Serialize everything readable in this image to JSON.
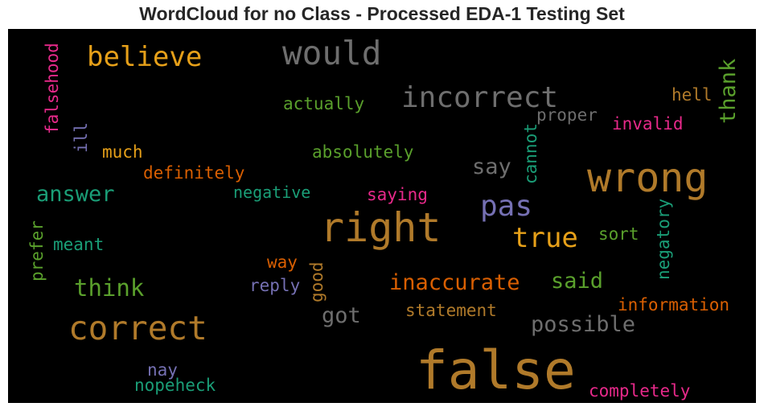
{
  "title": "WordCloud for no Class - Processed EDA-1 Testing Set",
  "colors": {
    "orange_brown": "#b07a2a",
    "gold": "#e6a019",
    "gray": "#6e6e6e",
    "green": "#5aa02c",
    "teal": "#1a9e77",
    "purple": "#7570b3",
    "pink": "#e7298a",
    "orange": "#d95f02"
  },
  "words": {
    "false": "false",
    "wrong": "wrong",
    "right": "right",
    "correct": "correct",
    "would": "would",
    "incorrect": "incorrect",
    "believe": "believe",
    "pas": "pas",
    "true": "true",
    "inaccurate": "inaccurate",
    "possible": "possible",
    "think": "think",
    "answer": "answer",
    "said": "said",
    "got": "got",
    "thank": "thank",
    "say": "say",
    "information": "information",
    "completely": "completely",
    "statement": "statement",
    "definitely": "definitely",
    "absolutely": "absolutely",
    "actually": "actually",
    "negative": "negative",
    "saying": "saying",
    "invalid": "invalid",
    "proper": "proper",
    "hell": "hell",
    "much": "much",
    "meant": "meant",
    "sort": "sort",
    "way": "way",
    "reply": "reply",
    "nay": "nay",
    "nopeheck": "nopeheck",
    "falsehood": "falsehood",
    "ill": "ill",
    "cannot": "cannot",
    "negatory": "negatory",
    "prefer": "prefer",
    "good": "good"
  }
}
